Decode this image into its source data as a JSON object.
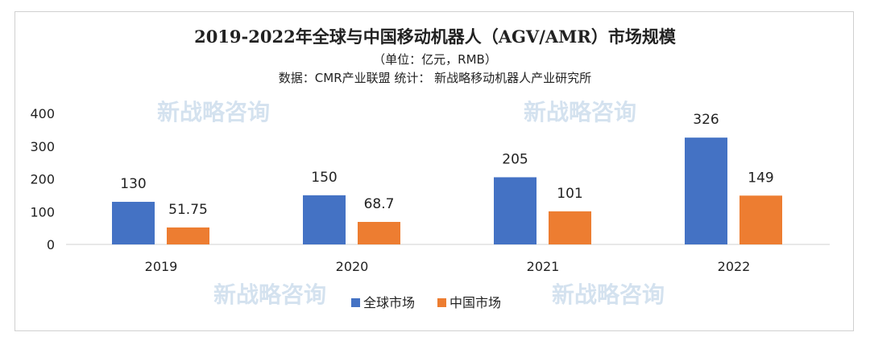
{
  "watermark": "新战略咨询",
  "chart_data": {
    "type": "bar",
    "title": "2019-2022年全球与中国移动机器人（AGV/AMR）市场规模",
    "subtitle": "（单位：亿元，RMB）",
    "source": "数据：CMR产业联盟   统计：  新战略移动机器人产业研究所",
    "categories": [
      "2019",
      "2020",
      "2021",
      "2022"
    ],
    "series": [
      {
        "name": "全球市场",
        "color": "#4472C4",
        "values": [
          130,
          150,
          205,
          326
        ],
        "labels": [
          "130",
          "150",
          "205",
          "326"
        ]
      },
      {
        "name": "中国市场",
        "color": "#ED7D31",
        "values": [
          51.75,
          68.7,
          101,
          149
        ],
        "labels": [
          "51.75",
          "68.7",
          "101",
          "149"
        ]
      }
    ],
    "yticks": [
      0,
      100,
      200,
      300,
      400
    ],
    "ylim": [
      0,
      400
    ],
    "grid": false,
    "legend": "bottom"
  }
}
